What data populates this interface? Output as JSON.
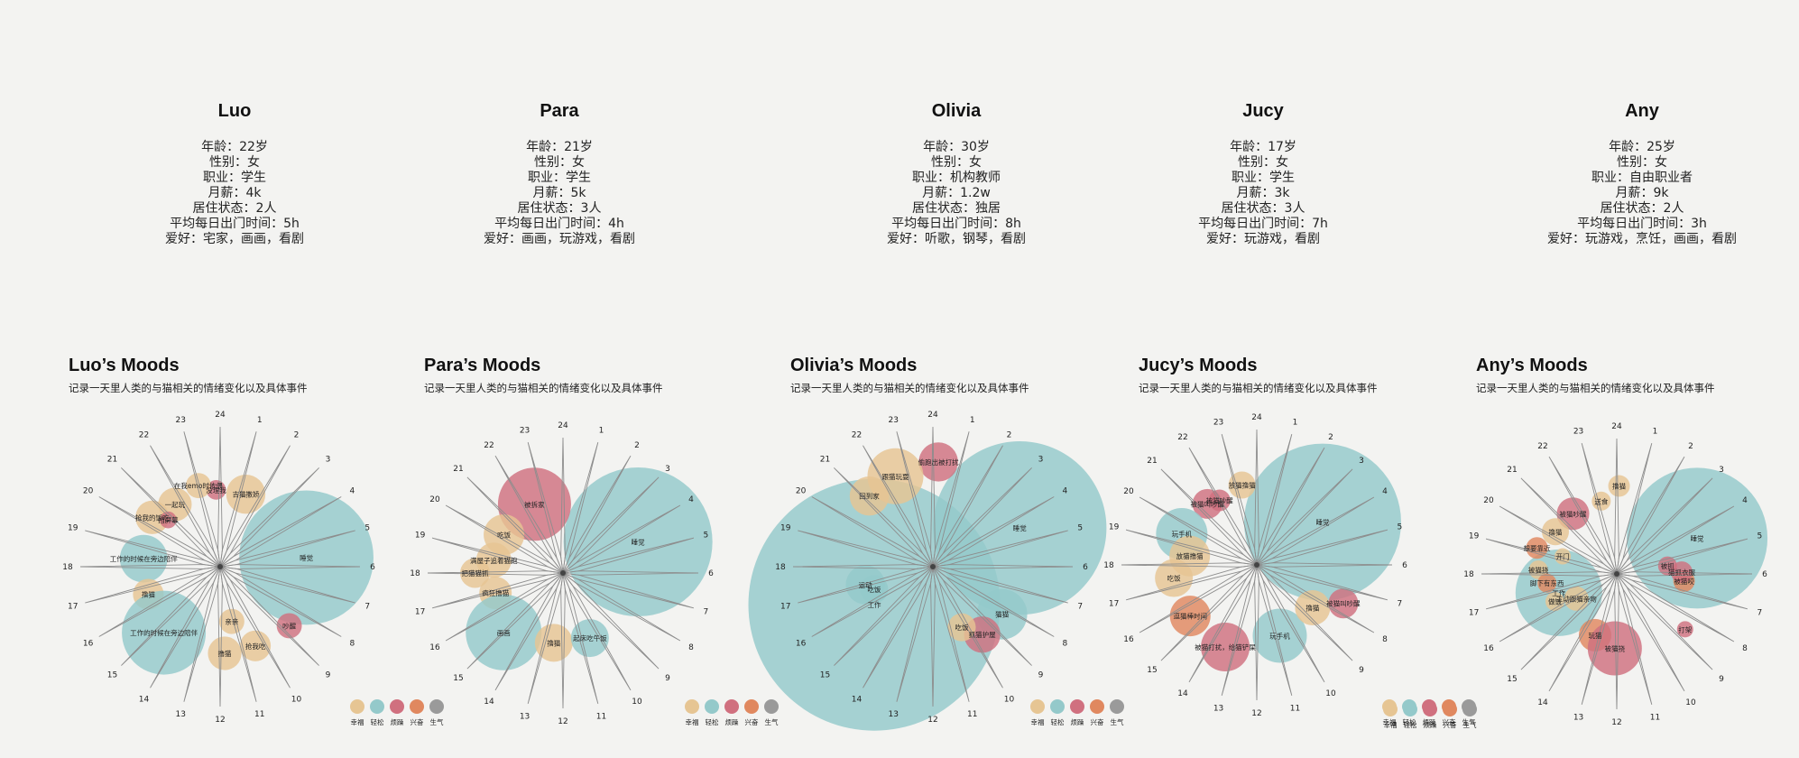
{
  "colors": {
    "幸福": "#e6c593",
    "轻松": "#94c9ca",
    "烦躁": "#d0707f",
    "兴奋": "#e0885f",
    "生气": "#9a9a9a"
  },
  "profiles": [
    {
      "name": "Luo",
      "lines": [
        "年龄：22岁",
        "性别：女",
        "职业：学生",
        "月薪：4k",
        "居住状态：2人",
        "平均每日出门时间：5h",
        "爱好：宅家，画画，看剧"
      ]
    },
    {
      "name": "Para",
      "lines": [
        "年龄：21岁",
        "性别：女",
        "职业：学生",
        "月薪：5k",
        "居住状态：3人",
        "平均每日出门时间：4h",
        "爱好：画画，玩游戏，看剧"
      ]
    },
    {
      "name": "Olivia",
      "lines": [
        "年龄：30岁",
        "性别：女",
        "职业：机构教师",
        "月薪：1.2w",
        "居住状态：独居",
        "平均每日出门时间：8h",
        "爱好：听歌，钢琴，看剧"
      ]
    },
    {
      "name": "Jucy",
      "lines": [
        "年龄：17岁",
        "性别：女",
        "职业：学生",
        "月薪：3k",
        "居住状态：3人",
        "平均每日出门时间：7h",
        "爱好：玩游戏，看剧"
      ]
    },
    {
      "name": "Any",
      "lines": [
        "年龄：25岁",
        "性别：女",
        "职业：自由职业者",
        "月薪：9k",
        "居住状态：2人",
        "平均每日出门时间：3h",
        "爱好：玩游戏，烹饪，画画，看剧"
      ]
    }
  ],
  "chart_data": [
    {
      "type": "radial-bubble",
      "title": "Luo’s Moods",
      "subtitle": "记录一天里人类的与猫相关的情绪变化以及具体事件",
      "hours": [
        1,
        2,
        3,
        4,
        5,
        6,
        7,
        8,
        9,
        10,
        11,
        12,
        13,
        14,
        15,
        16,
        17,
        18,
        19,
        20,
        21,
        22,
        23,
        24
      ],
      "legend": [
        "幸福",
        "轻松",
        "烦躁",
        "兴奋",
        "生气"
      ],
      "events": [
        {
          "hour": 5.6,
          "r": 0.62,
          "size": 0.48,
          "mood": "轻松",
          "label": "睡觉"
        },
        {
          "hour": 1.3,
          "r": 0.55,
          "size": 0.14,
          "mood": "幸福",
          "label": "吉猫撒娇"
        },
        {
          "hour": 23.8,
          "r": 0.55,
          "size": 0.07,
          "mood": "烦躁",
          "label": "没理我"
        },
        {
          "hour": 23.0,
          "r": 0.6,
          "size": 0.09,
          "mood": "幸福",
          "label": "在我emo时依偎"
        },
        {
          "hour": 21.6,
          "r": 0.55,
          "size": 0.12,
          "mood": "幸福",
          "label": "一起玩"
        },
        {
          "hour": 20.4,
          "r": 0.6,
          "size": 0.12,
          "mood": "幸福",
          "label": "抢我的饭吃"
        },
        {
          "hour": 20.8,
          "r": 0.5,
          "size": 0.06,
          "mood": "烦躁",
          "label": "挡屏幕"
        },
        {
          "hour": 18.4,
          "r": 0.55,
          "size": 0.17,
          "mood": "轻松",
          "label": "工作的时候在旁边陪伴"
        },
        {
          "hour": 16.6,
          "r": 0.55,
          "size": 0.11,
          "mood": "幸福",
          "label": "撸猫"
        },
        {
          "hour": 14.7,
          "r": 0.62,
          "size": 0.3,
          "mood": "轻松",
          "label": "工作的时候在旁边陪伴"
        },
        {
          "hour": 11.8,
          "r": 0.62,
          "size": 0.12,
          "mood": "幸福",
          "label": "撸猫"
        },
        {
          "hour": 11.2,
          "r": 0.4,
          "size": 0.09,
          "mood": "幸福",
          "label": "亲亲"
        },
        {
          "hour": 10.4,
          "r": 0.62,
          "size": 0.11,
          "mood": "幸福",
          "label": "抢我吃"
        },
        {
          "hour": 8.7,
          "r": 0.65,
          "size": 0.09,
          "mood": "烦躁",
          "label": "吵醒"
        }
      ]
    },
    {
      "type": "radial-bubble",
      "title": "Para’s Moods",
      "subtitle": "记录一天里人类的与猫相关的情绪变化以及具体事件",
      "hours": [
        1,
        2,
        3,
        4,
        5,
        6,
        7,
        8,
        9,
        10,
        11,
        12,
        13,
        14,
        15,
        16,
        17,
        18,
        19,
        20,
        21,
        22,
        23,
        24
      ],
      "legend": [
        "幸福",
        "轻松",
        "烦躁",
        "兴奋",
        "生气"
      ],
      "events": [
        {
          "hour": 4.5,
          "r": 0.6,
          "size": 0.55,
          "mood": "轻松",
          "label": "睡觉"
        },
        {
          "hour": 22.5,
          "r": 0.55,
          "size": 0.27,
          "mood": "烦躁",
          "label": "被拆家"
        },
        {
          "hour": 20.2,
          "r": 0.52,
          "size": 0.15,
          "mood": "幸福",
          "label": "吃饭"
        },
        {
          "hour": 18.7,
          "r": 0.52,
          "size": 0.13,
          "mood": "幸福",
          "label": "满屋子追着猫跑"
        },
        {
          "hour": 18.0,
          "r": 0.65,
          "size": 0.11,
          "mood": "幸福",
          "label": "把猫猫抓"
        },
        {
          "hour": 16.9,
          "r": 0.52,
          "size": 0.12,
          "mood": "幸福",
          "label": "疯狂撸猫"
        },
        {
          "hour": 15.0,
          "r": 0.62,
          "size": 0.28,
          "mood": "轻松",
          "label": "画画"
        },
        {
          "hour": 12.5,
          "r": 0.52,
          "size": 0.14,
          "mood": "幸福",
          "label": "撸猫"
        },
        {
          "hour": 10.5,
          "r": 0.52,
          "size": 0.14,
          "mood": "轻松",
          "label": "起床吃午饭"
        }
      ]
    },
    {
      "type": "radial-bubble",
      "title": "Olivia’s Moods",
      "subtitle": "记录一天里人类的与猫相关的情绪变化以及具体事件",
      "hours": [
        1,
        2,
        3,
        4,
        5,
        6,
        7,
        8,
        9,
        10,
        11,
        12,
        13,
        14,
        15,
        16,
        17,
        18,
        19,
        20,
        21,
        22,
        23,
        24
      ],
      "legend": [
        "幸福",
        "轻松",
        "烦躁",
        "兴奋",
        "生气"
      ],
      "events": [
        {
          "hour": 4.4,
          "r": 0.68,
          "size": 0.62,
          "mood": "轻松",
          "label": "睡觉"
        },
        {
          "hour": 15.8,
          "r": 0.5,
          "size": 0.9,
          "mood": "轻松",
          "label": "工作"
        },
        {
          "hour": 0.2,
          "r": 0.75,
          "size": 0.14,
          "mood": "烦躁",
          "label": "偷跑出被打扰"
        },
        {
          "hour": 22.5,
          "r": 0.7,
          "size": 0.2,
          "mood": "幸福",
          "label": "跟猫玩耍"
        },
        {
          "hour": 21.2,
          "r": 0.68,
          "size": 0.14,
          "mood": "幸福",
          "label": "回到家"
        },
        {
          "hour": 17.0,
          "r": 0.5,
          "size": 0.14,
          "mood": "轻松",
          "label": "运动"
        },
        {
          "hour": 16.6,
          "r": 0.45,
          "size": 0.1,
          "mood": "轻松",
          "label": "吃饭"
        },
        {
          "hour": 8.3,
          "r": 0.6,
          "size": 0.18,
          "mood": "轻松",
          "label": "猫猫"
        },
        {
          "hour": 9.6,
          "r": 0.6,
          "size": 0.13,
          "mood": "烦躁",
          "label": "抓猫护屋"
        },
        {
          "hour": 10.3,
          "r": 0.48,
          "size": 0.1,
          "mood": "幸福",
          "label": "吃饭"
        }
      ]
    },
    {
      "type": "radial-bubble",
      "title": "Jucy’s Moods",
      "subtitle": "记录一天里人类的与猫相关的情绪变化以及具体事件",
      "hours": [
        1,
        2,
        3,
        4,
        5,
        6,
        7,
        8,
        9,
        10,
        11,
        12,
        13,
        14,
        15,
        16,
        17,
        18,
        19,
        20,
        21,
        22,
        23,
        24
      ],
      "legend": [
        "幸福",
        "轻松",
        "烦躁",
        "兴奋",
        "生气"
      ],
      "events": [
        {
          "hour": 3.8,
          "r": 0.58,
          "size": 0.58,
          "mood": "轻松",
          "label": "睡觉"
        },
        {
          "hour": 23.3,
          "r": 0.6,
          "size": 0.1,
          "mood": "幸福",
          "label": "放猫撸猫"
        },
        {
          "hour": 22.0,
          "r": 0.55,
          "size": 0.08,
          "mood": "烦躁",
          "label": "被猫吵醒"
        },
        {
          "hour": 21.4,
          "r": 0.58,
          "size": 0.11,
          "mood": "烦躁",
          "label": "被猫叫吵醒"
        },
        {
          "hour": 19.5,
          "r": 0.6,
          "size": 0.19,
          "mood": "轻松",
          "label": "玩手机"
        },
        {
          "hour": 18.5,
          "r": 0.5,
          "size": 0.15,
          "mood": "幸福",
          "label": "放猫撸猫"
        },
        {
          "hour": 17.4,
          "r": 0.62,
          "size": 0.14,
          "mood": "幸福",
          "label": "吃饭"
        },
        {
          "hour": 15.5,
          "r": 0.62,
          "size": 0.15,
          "mood": "兴奋",
          "label": "逗猫棒时间"
        },
        {
          "hour": 13.4,
          "r": 0.65,
          "size": 0.18,
          "mood": "烦躁",
          "label": "被猫打扰，给猫铲屎"
        },
        {
          "hour": 10.8,
          "r": 0.55,
          "size": 0.2,
          "mood": "轻松",
          "label": "玩手机"
        },
        {
          "hour": 8.5,
          "r": 0.52,
          "size": 0.13,
          "mood": "幸福",
          "label": "撸猫"
        },
        {
          "hour": 7.6,
          "r": 0.7,
          "size": 0.11,
          "mood": "烦躁",
          "label": "被猫叫吵醒"
        }
      ]
    },
    {
      "type": "radial-bubble",
      "title": "Any’s Moods",
      "subtitle": "记录一天里人类的与猫相关的情绪变化以及具体事件",
      "hours": [
        1,
        2,
        3,
        4,
        5,
        6,
        7,
        8,
        9,
        10,
        11,
        12,
        13,
        14,
        15,
        16,
        17,
        18,
        19,
        20,
        21,
        22,
        23,
        24
      ],
      "legend": [
        "幸福",
        "轻松",
        "烦躁",
        "兴奋",
        "生气"
      ],
      "events": [
        {
          "hour": 4.4,
          "r": 0.65,
          "size": 0.52,
          "mood": "轻松",
          "label": "睡觉"
        },
        {
          "hour": 16.8,
          "r": 0.45,
          "size": 0.32,
          "mood": "轻松",
          "label": "工作"
        },
        {
          "hour": 0.1,
          "r": 0.65,
          "size": 0.08,
          "mood": "幸福",
          "label": "撸猫"
        },
        {
          "hour": 23.2,
          "r": 0.55,
          "size": 0.07,
          "mood": "幸福",
          "label": "送食"
        },
        {
          "hour": 21.6,
          "r": 0.55,
          "size": 0.12,
          "mood": "烦躁",
          "label": "被猫吵醒"
        },
        {
          "hour": 20.3,
          "r": 0.55,
          "size": 0.1,
          "mood": "幸福",
          "label": "撸猫"
        },
        {
          "hour": 19.2,
          "r": 0.62,
          "size": 0.08,
          "mood": "兴奋",
          "label": "想要靠近"
        },
        {
          "hour": 19.2,
          "r": 0.42,
          "size": 0.06,
          "mood": "幸福",
          "label": "开门"
        },
        {
          "hour": 18.2,
          "r": 0.58,
          "size": 0.07,
          "mood": "幸福",
          "label": "被猫挠"
        },
        {
          "hour": 17.5,
          "r": 0.52,
          "size": 0.07,
          "mood": "兴奋",
          "label": "脚下有东西"
        },
        {
          "hour": 16.4,
          "r": 0.5,
          "size": 0.07,
          "mood": "幸福",
          "label": "做饭"
        },
        {
          "hour": 15.9,
          "r": 0.35,
          "size": 0.09,
          "mood": "幸福",
          "label": "主动跟猫亲吻"
        },
        {
          "hour": 13.3,
          "r": 0.48,
          "size": 0.12,
          "mood": "兴奋",
          "label": "玩猫"
        },
        {
          "hour": 12.1,
          "r": 0.55,
          "size": 0.2,
          "mood": "烦躁",
          "label": "被猫挠"
        },
        {
          "hour": 6.4,
          "r": 0.5,
          "size": 0.08,
          "mood": "兴奋",
          "label": "被猫咬"
        },
        {
          "hour": 5.4,
          "r": 0.38,
          "size": 0.07,
          "mood": "烦躁",
          "label": "被抓"
        },
        {
          "hour": 5.9,
          "r": 0.48,
          "size": 0.08,
          "mood": "烦躁",
          "label": "猫抓衣服"
        },
        {
          "hour": 8.6,
          "r": 0.65,
          "size": 0.06,
          "mood": "烦躁",
          "label": "打架"
        }
      ]
    }
  ]
}
